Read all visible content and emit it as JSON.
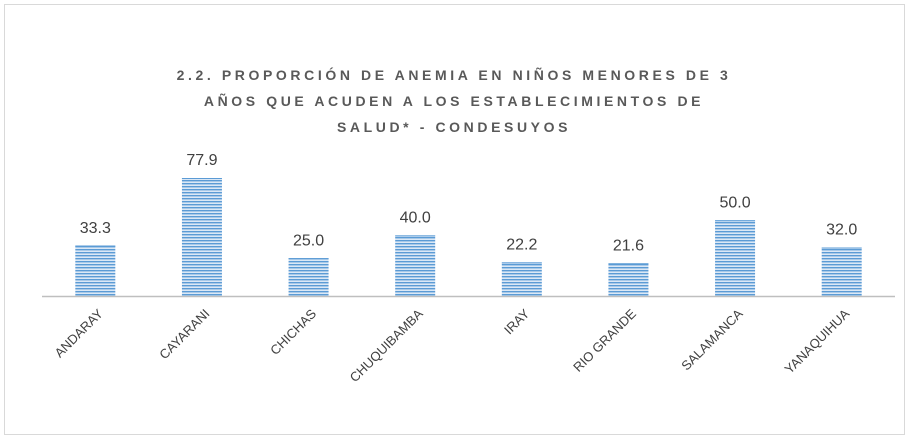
{
  "chart_data": {
    "type": "bar",
    "title": "2.2. PROPORCIÓN DE ANEMIA EN NIÑOS MENORES DE 3 AÑOS QUE ACUDEN A LOS ESTABLECIMIENTOS DE SALUD* - CONDESUYOS",
    "categories": [
      "ANDARAY",
      "CAYARANI",
      "CHICHAS",
      "CHUQUIBAMBA",
      "IRAY",
      "RIO GRANDE",
      "SALAMANCA",
      "YANAQUIHUA"
    ],
    "values": [
      33.3,
      77.9,
      25,
      40,
      22.2,
      21.6,
      50,
      32
    ],
    "value_labels": [
      "33.3",
      "77.9",
      "25.0",
      "40.0",
      "22.2",
      "21.6",
      "50.0",
      "32.0"
    ],
    "color": "#5b9bd5"
  }
}
